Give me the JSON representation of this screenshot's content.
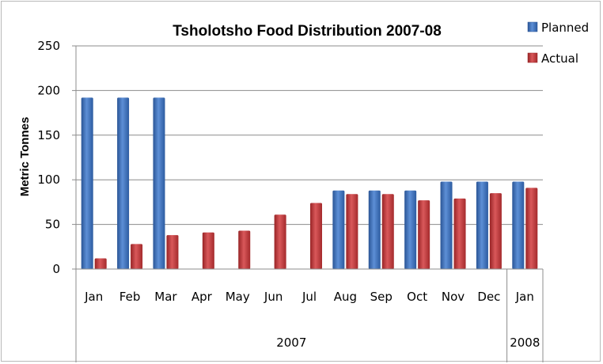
{
  "chart_data": {
    "type": "bar",
    "title": "Tsholotsho Food Distribution 2007-08",
    "ylabel": "Metric Tonnes",
    "xlabel": "",
    "categories": [
      "Jan",
      "Feb",
      "Mar",
      "Apr",
      "May",
      "Jun",
      "Jul",
      "Aug",
      "Sep",
      "Oct",
      "Nov",
      "Dec",
      "Jan"
    ],
    "groups": [
      {
        "label": "2007",
        "count": 12
      },
      {
        "label": "2008",
        "count": 1
      }
    ],
    "series": [
      {
        "name": "Planned",
        "color": "#3f74c0",
        "values": [
          192,
          192,
          192,
          0,
          0,
          0,
          0,
          88,
          88,
          88,
          98,
          98,
          98
        ]
      },
      {
        "name": "Actual",
        "color": "#c0393a",
        "values": [
          12,
          28,
          38,
          41,
          43,
          61,
          74,
          84,
          84,
          77,
          79,
          85,
          91
        ]
      }
    ],
    "ylim": [
      0,
      250
    ],
    "yticks": [
      0,
      50,
      100,
      150,
      200,
      250
    ],
    "grid": true,
    "legend": "top-right"
  }
}
